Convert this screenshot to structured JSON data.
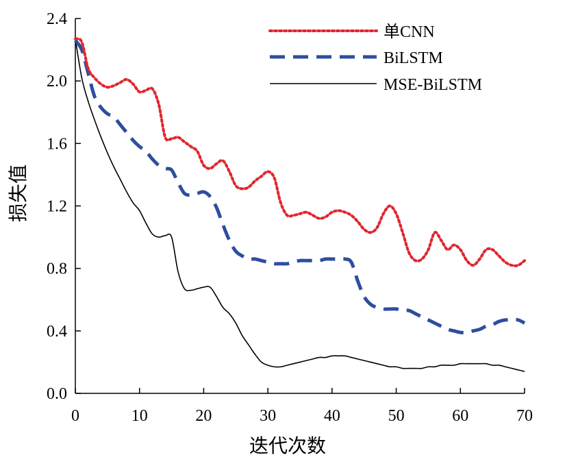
{
  "chart_data": {
    "type": "line",
    "title": "",
    "xlabel": "迭代次数",
    "ylabel": "损失值",
    "xlim": [
      0,
      70
    ],
    "ylim": [
      0,
      2.4
    ],
    "xticks": [
      0,
      10,
      20,
      30,
      40,
      50,
      60,
      70
    ],
    "yticks": [
      0,
      0.4,
      0.8,
      1.2,
      1.6,
      2.0,
      2.4
    ],
    "xtick_labels": [
      "0",
      "10",
      "20",
      "30",
      "40",
      "50",
      "60",
      "70"
    ],
    "ytick_labels": [
      "0.0",
      "0.4",
      "0.8",
      "1.2",
      "1.6",
      "2.0",
      "2.4"
    ],
    "grid": false,
    "legend_position": "top-right",
    "series": [
      {
        "name": "单CNN",
        "color": "#e0262e",
        "style": "dotted",
        "x": [
          0,
          1,
          2,
          3,
          4,
          5,
          6,
          7,
          8,
          9,
          10,
          11,
          12,
          13,
          14,
          15,
          16,
          17,
          18,
          19,
          20,
          21,
          22,
          23,
          24,
          25,
          26,
          27,
          28,
          29,
          30,
          31,
          32,
          33,
          34,
          35,
          36,
          37,
          38,
          39,
          40,
          41,
          42,
          43,
          44,
          45,
          46,
          47,
          48,
          49,
          50,
          51,
          52,
          53,
          54,
          55,
          56,
          57,
          58,
          59,
          60,
          61,
          62,
          63,
          64,
          65,
          66,
          67,
          68,
          69,
          70
        ],
        "y": [
          2.27,
          2.25,
          2.08,
          2.02,
          1.98,
          1.96,
          1.97,
          1.99,
          2.01,
          1.98,
          1.93,
          1.94,
          1.95,
          1.85,
          1.64,
          1.63,
          1.64,
          1.61,
          1.58,
          1.55,
          1.46,
          1.44,
          1.47,
          1.49,
          1.42,
          1.33,
          1.31,
          1.32,
          1.36,
          1.39,
          1.42,
          1.38,
          1.22,
          1.14,
          1.14,
          1.15,
          1.16,
          1.14,
          1.12,
          1.13,
          1.16,
          1.17,
          1.16,
          1.14,
          1.1,
          1.05,
          1.03,
          1.06,
          1.15,
          1.2,
          1.15,
          1.03,
          0.9,
          0.85,
          0.86,
          0.92,
          1.03,
          0.98,
          0.92,
          0.95,
          0.92,
          0.85,
          0.82,
          0.86,
          0.92,
          0.92,
          0.88,
          0.84,
          0.82,
          0.82,
          0.85
        ]
      },
      {
        "name": "BiLSTM",
        "color": "#2e4e9e",
        "style": "dashed",
        "x": [
          0,
          1,
          2,
          3,
          4,
          5,
          6,
          7,
          8,
          9,
          10,
          11,
          12,
          13,
          14,
          15,
          16,
          17,
          18,
          19,
          20,
          21,
          22,
          23,
          24,
          25,
          26,
          27,
          28,
          29,
          30,
          31,
          32,
          33,
          34,
          35,
          36,
          37,
          38,
          39,
          40,
          41,
          42,
          43,
          44,
          45,
          46,
          47,
          48,
          49,
          50,
          51,
          52,
          53,
          54,
          55,
          56,
          57,
          58,
          59,
          60,
          61,
          62,
          63,
          64,
          65,
          66,
          67,
          68,
          69,
          70
        ],
        "y": [
          2.26,
          2.2,
          2.05,
          1.9,
          1.83,
          1.79,
          1.77,
          1.72,
          1.67,
          1.62,
          1.58,
          1.55,
          1.5,
          1.46,
          1.44,
          1.43,
          1.35,
          1.28,
          1.27,
          1.28,
          1.29,
          1.26,
          1.19,
          1.08,
          0.98,
          0.91,
          0.88,
          0.86,
          0.86,
          0.85,
          0.84,
          0.83,
          0.83,
          0.83,
          0.84,
          0.85,
          0.85,
          0.85,
          0.85,
          0.86,
          0.86,
          0.86,
          0.86,
          0.84,
          0.72,
          0.62,
          0.57,
          0.55,
          0.54,
          0.54,
          0.54,
          0.53,
          0.53,
          0.51,
          0.49,
          0.47,
          0.45,
          0.43,
          0.41,
          0.4,
          0.39,
          0.39,
          0.4,
          0.41,
          0.43,
          0.44,
          0.46,
          0.47,
          0.47,
          0.47,
          0.45
        ]
      },
      {
        "name": "MSE-BiLSTM",
        "color": "#000000",
        "style": "solid",
        "x": [
          0,
          1,
          2,
          3,
          4,
          5,
          6,
          7,
          8,
          9,
          10,
          11,
          12,
          13,
          14,
          15,
          16,
          17,
          18,
          19,
          20,
          21,
          22,
          23,
          24,
          25,
          26,
          27,
          28,
          29,
          30,
          31,
          32,
          33,
          34,
          35,
          36,
          37,
          38,
          39,
          40,
          41,
          42,
          43,
          44,
          45,
          46,
          47,
          48,
          49,
          50,
          51,
          52,
          53,
          54,
          55,
          56,
          57,
          58,
          59,
          60,
          61,
          62,
          63,
          64,
          65,
          66,
          67,
          68,
          69,
          70
        ],
        "y": [
          2.27,
          2.02,
          1.87,
          1.75,
          1.64,
          1.54,
          1.45,
          1.37,
          1.29,
          1.22,
          1.17,
          1.09,
          1.02,
          1.0,
          1.01,
          1.0,
          0.78,
          0.67,
          0.66,
          0.67,
          0.68,
          0.68,
          0.62,
          0.55,
          0.51,
          0.45,
          0.37,
          0.31,
          0.25,
          0.2,
          0.18,
          0.17,
          0.17,
          0.18,
          0.19,
          0.2,
          0.21,
          0.22,
          0.23,
          0.23,
          0.24,
          0.24,
          0.24,
          0.23,
          0.22,
          0.21,
          0.2,
          0.19,
          0.18,
          0.17,
          0.17,
          0.16,
          0.16,
          0.16,
          0.16,
          0.17,
          0.17,
          0.18,
          0.18,
          0.18,
          0.19,
          0.19,
          0.19,
          0.19,
          0.19,
          0.18,
          0.18,
          0.17,
          0.16,
          0.15,
          0.14
        ]
      }
    ]
  }
}
